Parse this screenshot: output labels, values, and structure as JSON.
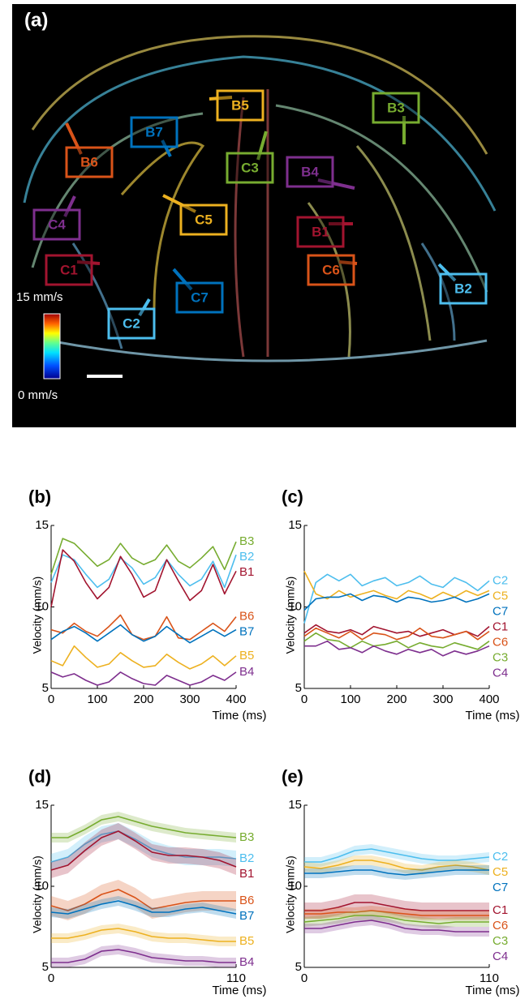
{
  "panel_a": {
    "label": "(a)",
    "callouts": [
      {
        "name": "B5",
        "color": "#edb120"
      },
      {
        "name": "B7",
        "color": "#0072bd"
      },
      {
        "name": "B3",
        "color": "#77ac30"
      },
      {
        "name": "B6",
        "color": "#d95319"
      },
      {
        "name": "C3",
        "color": "#77ac30"
      },
      {
        "name": "B4",
        "color": "#7e2f8e"
      },
      {
        "name": "C4",
        "color": "#7e2f8e"
      },
      {
        "name": "C5",
        "color": "#edb120"
      },
      {
        "name": "B1",
        "color": "#a2142f"
      },
      {
        "name": "C1",
        "color": "#a2142f"
      },
      {
        "name": "C6",
        "color": "#d95319"
      },
      {
        "name": "C7",
        "color": "#0072bd"
      },
      {
        "name": "B2",
        "color": "#4dbeee"
      },
      {
        "name": "C2",
        "color": "#4dbeee"
      }
    ],
    "colorbar": {
      "max_label": "15 mm/s",
      "min_label": "0 mm/s"
    }
  },
  "chart_data": [
    {
      "type": "line",
      "panel_label": "(b)",
      "y_label": "Velocity (mm/s)",
      "x_label": "Time (ms)",
      "xlim": [
        0,
        400
      ],
      "ylim": [
        5,
        15
      ],
      "xticks": [
        0,
        100,
        200,
        300,
        400
      ],
      "yticks": [
        5,
        10,
        15
      ],
      "x": [
        0,
        25,
        50,
        75,
        100,
        125,
        150,
        175,
        200,
        225,
        250,
        275,
        300,
        325,
        350,
        375,
        400
      ],
      "series": [
        {
          "name": "B3",
          "color": "#77ac30",
          "values": [
            12,
            14.2,
            13.9,
            13.2,
            12.5,
            12.9,
            13.9,
            13.0,
            12.6,
            12.9,
            13.8,
            12.8,
            12.4,
            13.0,
            13.7,
            12.3,
            14.0
          ]
        },
        {
          "name": "B2",
          "color": "#4dbeee",
          "values": [
            11.5,
            13.2,
            12.9,
            12.0,
            11.2,
            11.7,
            13.0,
            12.4,
            11.4,
            11.8,
            12.9,
            12.0,
            11.3,
            11.7,
            12.8,
            11.2,
            13.2
          ]
        },
        {
          "name": "B1",
          "color": "#a2142f",
          "values": [
            10,
            13.5,
            12.8,
            11.5,
            10.5,
            11.2,
            13.1,
            12.0,
            10.6,
            11.0,
            12.9,
            11.6,
            10.4,
            11.0,
            12.6,
            10.8,
            12.2
          ]
        },
        {
          "name": "B6",
          "color": "#d95319",
          "values": [
            8.6,
            8.4,
            9.0,
            8.5,
            8.2,
            8.8,
            9.5,
            8.3,
            8.0,
            8.2,
            9.4,
            8.1,
            8.0,
            8.5,
            9.0,
            8.5,
            9.4
          ]
        },
        {
          "name": "B7",
          "color": "#0072bd",
          "values": [
            8.0,
            8.5,
            8.8,
            8.4,
            7.9,
            8.4,
            8.9,
            8.3,
            7.9,
            8.2,
            8.8,
            8.3,
            7.8,
            8.2,
            8.6,
            8.2,
            8.6
          ]
        },
        {
          "name": "B5",
          "color": "#edb120",
          "values": [
            6.7,
            6.4,
            7.6,
            6.9,
            6.3,
            6.5,
            7.2,
            6.7,
            6.3,
            6.4,
            7.1,
            6.6,
            6.2,
            6.5,
            7.0,
            6.4,
            7.0
          ]
        },
        {
          "name": "B4",
          "color": "#7e2f8e",
          "values": [
            6.0,
            5.7,
            5.9,
            5.5,
            5.2,
            5.4,
            6.0,
            5.6,
            5.3,
            5.2,
            5.8,
            5.5,
            5.2,
            5.4,
            5.8,
            5.5,
            6.0
          ]
        }
      ]
    },
    {
      "type": "line",
      "panel_label": "(c)",
      "y_label": "Velocity (mm/s)",
      "x_label": "Time (ms)",
      "xlim": [
        0,
        400
      ],
      "ylim": [
        5,
        15
      ],
      "xticks": [
        0,
        100,
        200,
        300,
        400
      ],
      "yticks": [
        5,
        10,
        15
      ],
      "x": [
        0,
        25,
        50,
        75,
        100,
        125,
        150,
        175,
        200,
        225,
        250,
        275,
        300,
        325,
        350,
        375,
        400
      ],
      "series": [
        {
          "name": "C2",
          "color": "#4dbeee",
          "values": [
            9.0,
            11.5,
            12.0,
            11.6,
            12.0,
            11.3,
            11.6,
            11.8,
            11.3,
            11.5,
            11.9,
            11.4,
            11.2,
            11.8,
            11.5,
            11.0,
            11.6
          ]
        },
        {
          "name": "C5",
          "color": "#edb120",
          "values": [
            12.2,
            10.8,
            10.5,
            11.0,
            10.6,
            10.8,
            11.0,
            10.7,
            10.5,
            11.0,
            10.8,
            10.5,
            10.9,
            10.6,
            11.0,
            10.7,
            11.0
          ]
        },
        {
          "name": "C7",
          "color": "#0072bd",
          "values": [
            9.8,
            10.5,
            10.6,
            10.6,
            10.8,
            10.4,
            10.7,
            10.6,
            10.3,
            10.6,
            10.5,
            10.3,
            10.4,
            10.6,
            10.3,
            10.5,
            10.8
          ]
        },
        {
          "name": "C1",
          "color": "#a2142f",
          "values": [
            8.4,
            8.9,
            8.5,
            8.4,
            8.6,
            8.3,
            8.8,
            8.6,
            8.4,
            8.5,
            8.2,
            8.4,
            8.6,
            8.3,
            8.5,
            8.2,
            8.8
          ]
        },
        {
          "name": "C6",
          "color": "#d95319",
          "values": [
            8.2,
            8.7,
            8.4,
            8.1,
            8.5,
            8.0,
            8.4,
            8.3,
            8.0,
            8.2,
            8.7,
            8.2,
            8.1,
            8.3,
            8.5,
            8.0,
            8.5
          ]
        },
        {
          "name": "C3",
          "color": "#77ac30",
          "values": [
            7.9,
            8.4,
            8.0,
            7.9,
            7.5,
            7.9,
            7.6,
            7.7,
            7.9,
            7.5,
            7.8,
            7.6,
            7.5,
            7.8,
            7.6,
            7.4,
            7.9
          ]
        },
        {
          "name": "C4",
          "color": "#7e2f8e",
          "values": [
            7.6,
            7.6,
            7.9,
            7.4,
            7.5,
            7.2,
            7.6,
            7.3,
            7.1,
            7.4,
            7.2,
            7.4,
            7.0,
            7.3,
            7.1,
            7.3,
            7.6
          ]
        }
      ]
    },
    {
      "type": "band",
      "panel_label": "(d)",
      "y_label": "Velocity (mm/s)",
      "x_label": "Time (ms)",
      "xlim": [
        0,
        110
      ],
      "ylim": [
        5,
        15
      ],
      "xticks": [
        0,
        110
      ],
      "yticks": [
        5,
        10,
        15
      ],
      "x": [
        0,
        10,
        20,
        30,
        40,
        50,
        60,
        70,
        80,
        90,
        100,
        110
      ],
      "series": [
        {
          "name": "B3",
          "color": "#77ac30",
          "error": 0.3,
          "values": [
            13.0,
            13.0,
            13.5,
            14.1,
            14.3,
            14.0,
            13.7,
            13.5,
            13.3,
            13.2,
            13.1,
            13.0
          ]
        },
        {
          "name": "B2",
          "color": "#4dbeee",
          "error": 0.5,
          "values": [
            11.5,
            11.8,
            12.6,
            13.2,
            13.4,
            12.9,
            12.3,
            12.0,
            11.8,
            11.8,
            11.8,
            11.7
          ]
        },
        {
          "name": "B1",
          "color": "#a2142f",
          "error": 0.5,
          "values": [
            11.0,
            11.3,
            12.2,
            13.0,
            13.4,
            12.8,
            12.1,
            11.9,
            11.9,
            11.8,
            11.6,
            11.2
          ]
        },
        {
          "name": "B6",
          "color": "#d95319",
          "error": 0.6,
          "values": [
            8.8,
            8.5,
            8.9,
            9.5,
            9.8,
            9.3,
            8.6,
            8.8,
            9.0,
            9.1,
            9.1,
            9.1
          ]
        },
        {
          "name": "B7",
          "color": "#0072bd",
          "error": 0.3,
          "values": [
            8.4,
            8.3,
            8.6,
            8.9,
            9.1,
            8.8,
            8.4,
            8.4,
            8.6,
            8.7,
            8.5,
            8.3
          ]
        },
        {
          "name": "B5",
          "color": "#edb120",
          "error": 0.3,
          "values": [
            6.8,
            6.8,
            7.0,
            7.3,
            7.4,
            7.2,
            6.9,
            6.8,
            6.8,
            6.7,
            6.6,
            6.6
          ]
        },
        {
          "name": "B4",
          "color": "#7e2f8e",
          "error": 0.3,
          "values": [
            5.3,
            5.3,
            5.5,
            6.0,
            6.1,
            5.9,
            5.6,
            5.5,
            5.4,
            5.4,
            5.3,
            5.3
          ]
        }
      ]
    },
    {
      "type": "band",
      "panel_label": "(e)",
      "y_label": "Velocity (mm/s)",
      "x_label": "Time (ms)",
      "xlim": [
        0,
        110
      ],
      "ylim": [
        5,
        15
      ],
      "xticks": [
        0,
        110
      ],
      "yticks": [
        5,
        10,
        15
      ],
      "x": [
        0,
        10,
        20,
        30,
        40,
        50,
        60,
        70,
        80,
        90,
        100,
        110
      ],
      "series": [
        {
          "name": "C2",
          "color": "#4dbeee",
          "error": 0.3,
          "values": [
            11.5,
            11.5,
            11.8,
            12.2,
            12.3,
            12.1,
            11.9,
            11.7,
            11.6,
            11.6,
            11.7,
            11.8
          ]
        },
        {
          "name": "C5",
          "color": "#edb120",
          "error": 0.3,
          "values": [
            11.2,
            11.1,
            11.3,
            11.6,
            11.6,
            11.4,
            11.1,
            11.0,
            11.2,
            11.3,
            11.2,
            11.0
          ]
        },
        {
          "name": "C7",
          "color": "#0072bd",
          "error": 0.3,
          "values": [
            10.8,
            10.8,
            10.9,
            11.0,
            11.0,
            10.8,
            10.7,
            10.8,
            10.9,
            11.0,
            11.0,
            11.0
          ]
        },
        {
          "name": "C1",
          "color": "#a2142f",
          "error": 0.5,
          "values": [
            8.5,
            8.5,
            8.7,
            9.0,
            9.0,
            8.8,
            8.6,
            8.5,
            8.5,
            8.5,
            8.5,
            8.5
          ]
        },
        {
          "name": "C6",
          "color": "#d95319",
          "error": 0.3,
          "values": [
            8.3,
            8.3,
            8.4,
            8.4,
            8.5,
            8.4,
            8.3,
            8.2,
            8.2,
            8.2,
            8.2,
            8.2
          ]
        },
        {
          "name": "C3",
          "color": "#77ac30",
          "error": 0.3,
          "values": [
            7.8,
            7.9,
            8.0,
            8.2,
            8.2,
            8.1,
            7.9,
            7.8,
            7.7,
            7.8,
            7.8,
            7.8
          ]
        },
        {
          "name": "C4",
          "color": "#7e2f8e",
          "error": 0.3,
          "values": [
            7.4,
            7.4,
            7.6,
            7.8,
            7.9,
            7.7,
            7.4,
            7.3,
            7.3,
            7.2,
            7.2,
            7.2
          ]
        }
      ]
    }
  ]
}
